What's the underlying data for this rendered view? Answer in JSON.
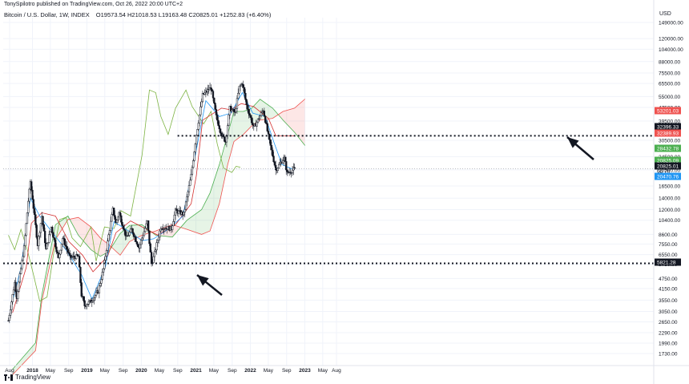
{
  "header": {
    "published": "TonySpilotro published on TradingView.com, Oct 26, 2022 20:00 UTC+2",
    "symbol": "Bitcoin / U.S. Dollar, 1W, INDEX",
    "ohlc": "O19573.54  H21018.53  L19163.48  C20825.01  +1252.83 (+6.40%)"
  },
  "footer": {
    "brand": "TradingView"
  },
  "chart_data": {
    "type": "candlestick",
    "currency_label": "USD",
    "log_scale": true,
    "y_ticks": [
      "149000.00",
      "120000.00",
      "104000.00",
      "88000.00",
      "75500.00",
      "65500.00",
      "55000.00",
      "47500.00",
      "39500.00",
      "30500.00",
      "24500.00",
      "20500.00",
      "16500.00",
      "14000.00",
      "12000.00",
      "10400.00",
      "8600.00",
      "7550.00",
      "6550.00",
      "5750.00",
      "4750.00",
      "4150.00",
      "3550.00",
      "3050.00",
      "2650.00",
      "2290.00",
      "1990.00",
      "1730.00"
    ],
    "x_ticks": [
      "Aug",
      "2018",
      "May",
      "Sep",
      "2019",
      "May",
      "Sep",
      "2020",
      "May",
      "Sep",
      "2021",
      "May",
      "Sep",
      "2022",
      "May",
      "Sep",
      "2023",
      "May",
      "Aug"
    ],
    "price_labels": [
      {
        "text": "53201.03",
        "color": "#ef5350"
      },
      {
        "text": "32396.33",
        "color": "#131722"
      },
      {
        "text": "32389.93",
        "color": "#ef5350"
      },
      {
        "text": "28432.78",
        "color": "#4caf50"
      },
      {
        "text": "20825.09",
        "color": "#4caf50"
      },
      {
        "text": "20825.01",
        "color": "#131722"
      },
      {
        "text": "6d 7h",
        "color": "#131722"
      },
      {
        "text": "20470.76",
        "color": "#2196f3"
      },
      {
        "text": "5821.28",
        "color": "#131722"
      }
    ],
    "horizontal_levels": [
      {
        "name": "resistance",
        "value": 32396.33,
        "style": "dotted"
      },
      {
        "name": "support",
        "value": 5821.28,
        "style": "dotted"
      }
    ],
    "ohlc_last": {
      "open": 19573.54,
      "high": 21018.53,
      "low": 19163.48,
      "close": 20825.01,
      "change": 1252.83,
      "change_pct": 6.4
    },
    "path": [
      [
        "2017-07-24",
        2700
      ],
      [
        "2017-09-04",
        4500
      ],
      [
        "2017-09-18",
        3700
      ],
      [
        "2017-11-06",
        7200
      ],
      [
        "2017-12-04",
        13500
      ],
      [
        "2017-12-18",
        17500
      ],
      [
        "2018-01-01",
        14000
      ],
      [
        "2018-02-05",
        7500
      ],
      [
        "2018-03-05",
        11000
      ],
      [
        "2018-04-02",
        7000
      ],
      [
        "2018-05-07",
        9500
      ],
      [
        "2018-06-25",
        6200
      ],
      [
        "2018-07-23",
        8200
      ],
      [
        "2018-09-10",
        6300
      ],
      [
        "2018-11-05",
        6400
      ],
      [
        "2018-11-26",
        3800
      ],
      [
        "2018-12-17",
        3300
      ],
      [
        "2019-01-28",
        3500
      ],
      [
        "2019-03-18",
        4000
      ],
      [
        "2019-04-22",
        5400
      ],
      [
        "2019-05-27",
        8500
      ],
      [
        "2019-06-24",
        12000
      ],
      [
        "2019-07-15",
        10000
      ],
      [
        "2019-08-05",
        11500
      ],
      [
        "2019-09-23",
        8200
      ],
      [
        "2019-10-28",
        9200
      ],
      [
        "2019-12-16",
        7200
      ],
      [
        "2020-02-10",
        10200
      ],
      [
        "2020-03-09",
        5800
      ],
      [
        "2020-03-23",
        6300
      ],
      [
        "2020-05-11",
        9500
      ],
      [
        "2020-07-20",
        9300
      ],
      [
        "2020-08-17",
        11800
      ],
      [
        "2020-10-12",
        11300
      ],
      [
        "2020-11-30",
        19000
      ],
      [
        "2021-01-04",
        33000
      ],
      [
        "2021-02-15",
        56000
      ],
      [
        "2021-04-12",
        62000
      ],
      [
        "2021-05-17",
        42000
      ],
      [
        "2021-06-21",
        33000
      ],
      [
        "2021-07-19",
        30000
      ],
      [
        "2021-08-16",
        47000
      ],
      [
        "2021-09-20",
        44000
      ],
      [
        "2021-10-18",
        62000
      ],
      [
        "2021-11-08",
        66000
      ],
      [
        "2021-12-06",
        49000
      ],
      [
        "2022-01-24",
        36000
      ],
      [
        "2022-03-28",
        46000
      ],
      [
        "2022-05-09",
        30000
      ],
      [
        "2022-06-13",
        22000
      ],
      [
        "2022-06-20",
        20500
      ],
      [
        "2022-08-15",
        24000
      ],
      [
        "2022-09-05",
        19600
      ],
      [
        "2022-10-24",
        20825
      ]
    ],
    "tenkan": [
      [
        "2017-08-21",
        3500
      ],
      [
        "2017-10-16",
        5500
      ],
      [
        "2017-12-18",
        14000
      ],
      [
        "2018-02-19",
        11000
      ],
      [
        "2018-05-07",
        9000
      ],
      [
        "2018-08-13",
        7000
      ],
      [
        "2018-11-26",
        5000
      ],
      [
        "2019-02-04",
        3600
      ],
      [
        "2019-05-06",
        5600
      ],
      [
        "2019-07-01",
        10200
      ],
      [
        "2019-10-07",
        9000
      ],
      [
        "2020-01-06",
        7900
      ],
      [
        "2020-03-23",
        8100
      ],
      [
        "2020-07-06",
        9300
      ],
      [
        "2020-10-05",
        11000
      ],
      [
        "2020-12-28",
        25000
      ],
      [
        "2021-03-08",
        52000
      ],
      [
        "2021-06-07",
        42000
      ],
      [
        "2021-08-23",
        44000
      ],
      [
        "2021-11-08",
        58000
      ],
      [
        "2022-01-17",
        44000
      ],
      [
        "2022-04-11",
        42000
      ],
      [
        "2022-06-06",
        30000
      ],
      [
        "2022-08-01",
        22000
      ],
      [
        "2022-10-24",
        20470
      ]
    ],
    "kijun": [
      [
        "2017-08-21",
        3000
      ],
      [
        "2017-11-20",
        5500
      ],
      [
        "2017-12-25",
        10000
      ],
      [
        "2018-03-05",
        11500
      ],
      [
        "2018-06-04",
        11000
      ],
      [
        "2018-09-03",
        7800
      ],
      [
        "2018-12-03",
        6500
      ],
      [
        "2019-02-11",
        5200
      ],
      [
        "2019-05-20",
        6400
      ],
      [
        "2019-07-15",
        8800
      ],
      [
        "2019-10-21",
        10300
      ],
      [
        "2020-01-27",
        9300
      ],
      [
        "2020-04-20",
        8500
      ],
      [
        "2020-08-17",
        9800
      ],
      [
        "2020-11-30",
        13000
      ],
      [
        "2021-01-04",
        19000
      ],
      [
        "2021-02-15",
        40000
      ],
      [
        "2021-06-21",
        47000
      ],
      [
        "2021-08-23",
        46000
      ],
      [
        "2021-11-01",
        50000
      ],
      [
        "2022-01-24",
        48000
      ],
      [
        "2022-05-02",
        41000
      ],
      [
        "2022-06-20",
        32400
      ],
      [
        "2022-10-24",
        32390
      ]
    ],
    "senkou_a": [
      [
        "2017-08-21",
        1400
      ],
      [
        "2018-01-22",
        2000
      ],
      [
        "2018-03-05",
        3800
      ],
      [
        "2018-06-04",
        9800
      ],
      [
        "2018-08-27",
        11000
      ],
      [
        "2018-11-05",
        8500
      ],
      [
        "2019-01-28",
        7000
      ],
      [
        "2019-04-01",
        6400
      ],
      [
        "2019-05-27",
        6800
      ],
      [
        "2019-08-12",
        8700
      ],
      [
        "2019-10-14",
        9700
      ],
      [
        "2020-01-06",
        9800
      ],
      [
        "2020-04-06",
        8500
      ],
      [
        "2020-07-27",
        8300
      ],
      [
        "2020-11-02",
        10400
      ],
      [
        "2021-02-08",
        12000
      ],
      [
        "2021-04-05",
        15000
      ],
      [
        "2021-06-07",
        22000
      ],
      [
        "2021-08-02",
        33000
      ],
      [
        "2021-09-13",
        45000
      ],
      [
        "2021-11-15",
        45000
      ],
      [
        "2022-01-10",
        47000
      ],
      [
        "2022-03-07",
        53000
      ],
      [
        "2022-05-30",
        47000
      ],
      [
        "2022-08-08",
        40000
      ],
      [
        "2022-10-24",
        34000
      ],
      [
        "2023-01-02",
        28432
      ]
    ],
    "senkou_b": [
      [
        "2017-08-21",
        1300
      ],
      [
        "2018-01-22",
        1800
      ],
      [
        "2018-03-05",
        3500
      ],
      [
        "2018-06-04",
        8000
      ],
      [
        "2018-08-27",
        10500
      ],
      [
        "2018-11-05",
        10800
      ],
      [
        "2019-01-28",
        9500
      ],
      [
        "2019-04-01",
        8200
      ],
      [
        "2019-05-27",
        7500
      ],
      [
        "2019-08-12",
        6500
      ],
      [
        "2019-10-14",
        7800
      ],
      [
        "2020-01-06",
        8500
      ],
      [
        "2020-04-06",
        9000
      ],
      [
        "2020-07-27",
        9800
      ],
      [
        "2020-11-02",
        9200
      ],
      [
        "2021-02-08",
        8600
      ],
      [
        "2021-04-05",
        9000
      ],
      [
        "2021-06-07",
        13000
      ],
      [
        "2021-08-02",
        22000
      ],
      [
        "2021-09-13",
        30000
      ],
      [
        "2021-11-15",
        33000
      ],
      [
        "2022-01-10",
        37000
      ],
      [
        "2022-03-07",
        40000
      ],
      [
        "2022-05-30",
        41000
      ],
      [
        "2022-08-08",
        45000
      ],
      [
        "2022-10-24",
        47000
      ],
      [
        "2023-01-02",
        53201
      ]
    ],
    "chikou": [
      [
        "2017-07-24",
        8500
      ],
      [
        "2017-09-04",
        7000
      ],
      [
        "2017-10-16",
        9200
      ],
      [
        "2017-11-27",
        7000
      ],
      [
        "2018-01-08",
        5000
      ],
      [
        "2018-02-19",
        3500
      ],
      [
        "2018-04-09",
        3700
      ],
      [
        "2018-05-21",
        6500
      ],
      [
        "2018-07-02",
        10500
      ],
      [
        "2018-08-13",
        10800
      ],
      [
        "2018-09-24",
        8200
      ],
      [
        "2018-11-19",
        7300
      ],
      [
        "2019-01-28",
        9500
      ],
      [
        "2019-03-04",
        6000
      ],
      [
        "2019-04-29",
        9500
      ],
      [
        "2019-07-01",
        9300
      ],
      [
        "2019-08-19",
        11800
      ],
      [
        "2019-10-21",
        11000
      ],
      [
        "2020-01-06",
        25000
      ],
      [
        "2020-02-24",
        60000
      ],
      [
        "2020-04-06",
        58000
      ],
      [
        "2020-05-11",
        42000
      ],
      [
        "2020-06-29",
        33000
      ],
      [
        "2020-08-17",
        47000
      ],
      [
        "2020-10-26",
        60000
      ],
      [
        "2020-12-07",
        48000
      ],
      [
        "2021-02-22",
        38000
      ],
      [
        "2021-04-12",
        45000
      ],
      [
        "2021-05-24",
        29000
      ],
      [
        "2021-07-05",
        21000
      ],
      [
        "2021-08-30",
        19800
      ],
      [
        "2021-09-27",
        21500
      ],
      [
        "2021-10-25",
        21200
      ]
    ]
  }
}
